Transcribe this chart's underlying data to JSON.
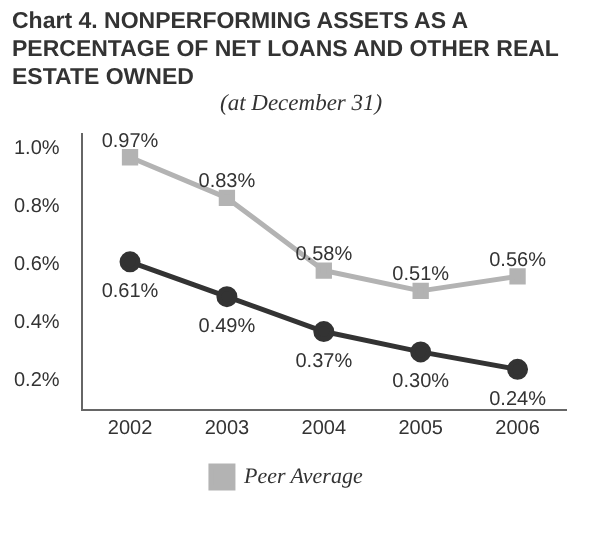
{
  "chart_data": {
    "type": "line",
    "title": "Chart 4. NONPERFORMING ASSETS AS A PERCENTAGE OF NET LOANS AND OTHER REAL ESTATE OWNED",
    "subtitle": "(at December 31)",
    "categories": [
      "2002",
      "2003",
      "2004",
      "2005",
      "2006"
    ],
    "series": [
      {
        "color": "#333333",
        "marker": "circle",
        "values": [
          0.61,
          0.49,
          0.37,
          0.3,
          0.24
        ],
        "value_labels": [
          "0.61%",
          "0.49%",
          "0.37%",
          "0.30%",
          "0.24%"
        ]
      },
      {
        "name": "Peer Average",
        "color": "#b3b3b3",
        "marker": "square",
        "values": [
          0.97,
          0.83,
          0.58,
          0.51,
          0.56
        ],
        "value_labels": [
          "0.97%",
          "0.83%",
          "0.58%",
          "0.51%",
          "0.56%"
        ]
      }
    ],
    "ylim": [
      0.1,
      1.05
    ],
    "yticks": [
      {
        "value": 0.2,
        "label": "0.2%"
      },
      {
        "value": 0.4,
        "label": "0.4%"
      },
      {
        "value": 0.6,
        "label": "0.6%"
      },
      {
        "value": 0.8,
        "label": "0.8%"
      },
      {
        "value": 1.0,
        "label": "1.0%"
      }
    ],
    "grid": false,
    "legend": "bottom"
  }
}
